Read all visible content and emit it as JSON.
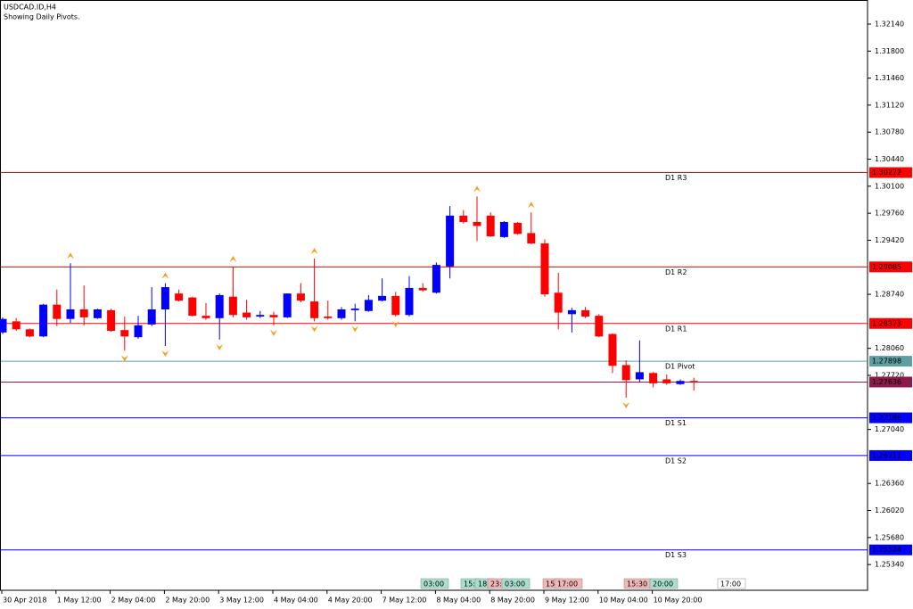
{
  "chart_data": {
    "type": "candlestick",
    "title": "USDCAD.ID,H4",
    "subtitle": "Showing Daily Pivots.",
    "categories": [
      "30 Apr 2018",
      null,
      null,
      null,
      "1 May 12:00",
      null,
      null,
      null,
      "2 May 04:00",
      null,
      null,
      null,
      "2 May 20:00",
      null,
      null,
      null,
      "3 May 12:00",
      null,
      null,
      null,
      "4 May 04:00",
      null,
      null,
      null,
      "4 May 20:00",
      null,
      null,
      null,
      "7 May 12:00",
      null,
      null,
      null,
      "8 May 04:00",
      null,
      null,
      null,
      "8 May 20:00",
      null,
      null,
      null,
      "9 May 12:00",
      null,
      null,
      null,
      "10 May 04:00",
      null,
      null,
      null,
      "10 May 20:00",
      null,
      null,
      null
    ],
    "open": [
      1.2826,
      1.284,
      1.283,
      1.2821,
      1.2861,
      1.2843,
      1.2855,
      1.2844,
      1.2854,
      1.2829,
      1.282,
      1.2836,
      1.2855,
      1.2875,
      1.287,
      1.2847,
      1.2844,
      1.2871,
      1.2851,
      1.2846,
      1.2848,
      1.2845,
      1.2875,
      1.2865,
      1.2846,
      1.2844,
      1.2854,
      1.2853,
      1.2866,
      1.2872,
      1.2848,
      1.2882,
      1.2876,
      1.2909,
      1.2973,
      1.2965,
      1.2973,
      1.2946,
      1.2964,
      1.2951,
      1.2938,
      1.2876,
      1.2849,
      1.2854,
      1.2847,
      1.2824,
      1.2785,
      1.2767,
      1.2775,
      1.2767,
      1.2761,
      1.2765
    ],
    "high": [
      1.2845,
      1.2844,
      1.2831,
      1.2862,
      1.288,
      1.2913,
      1.2885,
      1.2856,
      1.2856,
      1.2846,
      1.2847,
      1.2883,
      1.2888,
      1.288,
      1.2871,
      1.2863,
      1.2875,
      1.2909,
      1.2867,
      1.2853,
      1.2852,
      1.2875,
      1.2888,
      1.2919,
      1.2866,
      1.2858,
      1.2862,
      1.2873,
      1.2894,
      1.2877,
      1.2897,
      1.2888,
      1.2914,
      1.2985,
      1.298,
      1.2997,
      1.2977,
      1.2966,
      1.2965,
      1.2977,
      1.2943,
      1.2901,
      1.2857,
      1.2858,
      1.2849,
      1.2825,
      1.2791,
      1.2816,
      1.2776,
      1.2773,
      1.2767,
      1.2769
    ],
    "low": [
      1.2824,
      1.2828,
      1.282,
      1.282,
      1.2834,
      1.2838,
      1.2835,
      1.2843,
      1.2827,
      1.2803,
      1.2818,
      1.2834,
      1.2809,
      1.2865,
      1.2846,
      1.2842,
      1.2817,
      1.2845,
      1.2842,
      1.2844,
      1.2835,
      1.2844,
      1.2864,
      1.284,
      1.2842,
      1.2842,
      1.284,
      1.2852,
      1.2865,
      1.2846,
      1.2846,
      1.2877,
      1.2875,
      1.2894,
      1.2963,
      1.2941,
      1.2946,
      1.2945,
      1.2949,
      1.2937,
      1.2871,
      1.283,
      1.2826,
      1.2844,
      1.282,
      1.2775,
      1.2744,
      1.2764,
      1.2757,
      1.276,
      1.276,
      1.2753
    ],
    "close": [
      1.2843,
      1.283,
      1.2821,
      1.2861,
      1.2843,
      1.2855,
      1.2845,
      1.2855,
      1.2828,
      1.2821,
      1.2835,
      1.2855,
      1.2883,
      1.2866,
      1.2847,
      1.2844,
      1.2873,
      1.2848,
      1.2845,
      1.2848,
      1.2845,
      1.2875,
      1.2866,
      1.2844,
      1.2844,
      1.2855,
      1.2856,
      1.2867,
      1.2872,
      1.2848,
      1.2882,
      1.2879,
      1.2911,
      1.2973,
      1.2965,
      1.296,
      1.2947,
      1.2965,
      1.295,
      1.2938,
      1.2874,
      1.2851,
      1.2854,
      1.2846,
      1.2821,
      1.2784,
      1.2766,
      1.2776,
      1.2762,
      1.2762,
      1.2765,
      1.27636
    ],
    "up_color": "#0000ff",
    "down_color": "#ff0000",
    "fractals_up": [
      null,
      null,
      null,
      null,
      null,
      1.2913,
      null,
      null,
      null,
      null,
      null,
      null,
      1.2888,
      null,
      null,
      null,
      null,
      1.2909,
      null,
      null,
      null,
      null,
      null,
      1.2919,
      null,
      null,
      null,
      null,
      null,
      null,
      null,
      null,
      null,
      null,
      null,
      1.2997,
      null,
      null,
      null,
      1.2977,
      null,
      null,
      null,
      null,
      null,
      null,
      null,
      null,
      null,
      null,
      null,
      null
    ],
    "fractals_down": [
      null,
      null,
      null,
      null,
      null,
      null,
      null,
      null,
      null,
      1.2803,
      null,
      null,
      1.2809,
      null,
      null,
      null,
      1.2817,
      null,
      null,
      null,
      1.2835,
      null,
      null,
      1.284,
      null,
      null,
      1.284,
      null,
      null,
      1.2846,
      null,
      null,
      null,
      null,
      null,
      null,
      null,
      null,
      null,
      null,
      null,
      null,
      null,
      null,
      null,
      null,
      1.2744,
      null,
      null,
      null,
      null,
      null
    ],
    "fractal_color": "#f0a020",
    "levels": [
      {
        "name": "D1 R3",
        "value": 1.30272,
        "color": "#ff0000"
      },
      {
        "name": "D1 R2",
        "value": 1.29085,
        "color": "#ff0000"
      },
      {
        "name": "D1 R1",
        "value": 1.28373,
        "color": "#ff0000"
      },
      {
        "name": "D1 Pivot",
        "value": 1.27898,
        "color": "#5f9ea0"
      },
      {
        "name": "D1 S1",
        "value": 1.27186,
        "color": "#0000ff"
      },
      {
        "name": "D1 S2",
        "value": 1.26711,
        "color": "#0000ff"
      },
      {
        "name": "D1 S3",
        "value": 1.25524,
        "color": "#0000ff"
      }
    ],
    "price_line": {
      "value": 1.27636,
      "color": "#8b1a4a"
    },
    "ylim": [
      1.25016,
      1.32443
    ],
    "yticks": [
      {
        "value": 1.3214,
        "label": "1.32140"
      },
      {
        "value": 1.318,
        "label": "1.31800"
      },
      {
        "value": 1.3146,
        "label": "1.31460"
      },
      {
        "value": 1.3112,
        "label": "1.31120"
      },
      {
        "value": 1.3078,
        "label": "1.30780"
      },
      {
        "value": 1.3044,
        "label": "1.30440"
      },
      {
        "value": 1.301,
        "label": "1.30100"
      },
      {
        "value": 1.2976,
        "label": "1.29760"
      },
      {
        "value": 1.2942,
        "label": "1.29420"
      },
      {
        "value": 1.2874,
        "label": "1.28740"
      },
      {
        "value": 1.2806,
        "label": "1.28060"
      },
      {
        "value": 1.2772,
        "label": "1.27720"
      },
      {
        "value": 1.2704,
        "label": "1.27040"
      },
      {
        "value": 1.2636,
        "label": "1.26360"
      },
      {
        "value": 1.2602,
        "label": "1.26020"
      },
      {
        "value": 1.2568,
        "label": "1.25680"
      },
      {
        "value": 1.2534,
        "label": "1.25340"
      }
    ],
    "sessions": [
      {
        "label": "03:00",
        "color": "#a8e0d0"
      },
      {
        "label": "15:",
        "color": "#a8e0d0"
      },
      {
        "label": "18:",
        "color": "#a8e0d0"
      },
      {
        "label": "23:",
        "color": "#f2b8b8"
      },
      {
        "label": "03:00",
        "color": "#a8e0d0"
      },
      {
        "label": "15:",
        "color": "#f2b8b8"
      },
      {
        "label": "17:00",
        "color": "#f2b8b8"
      },
      {
        "label": "15:30",
        "color": "#f2b8b8"
      },
      {
        "label": "20:00",
        "color": "#a8e0d0"
      },
      {
        "label": "17:00",
        "color": "#ffffff"
      }
    ]
  }
}
